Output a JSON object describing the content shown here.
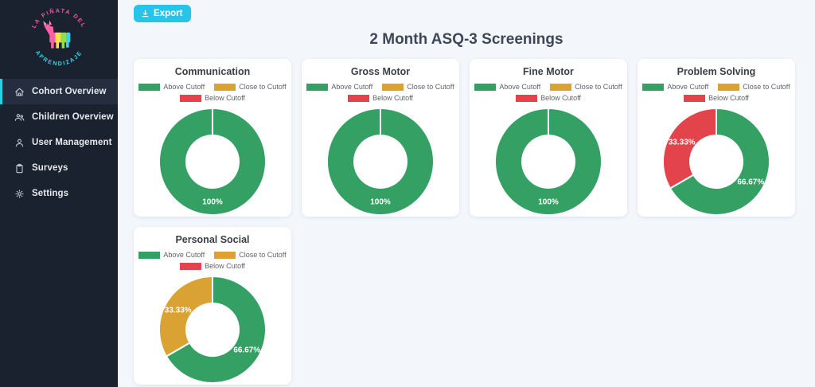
{
  "sidebar": {
    "logo": {
      "top_text": "LA PIÑATA DEL",
      "bottom_text": "APRENDIZAJE"
    },
    "items": [
      {
        "label": "Cohort Overview",
        "icon": "home",
        "active": true
      },
      {
        "label": "Children Overview",
        "icon": "people",
        "active": false
      },
      {
        "label": "User Management",
        "icon": "user",
        "active": false
      },
      {
        "label": "Surveys",
        "icon": "clipboard",
        "active": false
      },
      {
        "label": "Settings",
        "icon": "gear",
        "active": false
      }
    ]
  },
  "toolbar": {
    "export_label": "Export"
  },
  "page_title": "2 Month ASQ-3 Screenings",
  "chart_meta": {
    "categories": [
      "Above Cutoff",
      "Close to Cutoff",
      "Below Cutoff"
    ],
    "colors": [
      "#35a064",
      "#d9a233",
      "#e3434a"
    ],
    "legend_position": "top",
    "accent_color": "#27c4ea"
  },
  "chart_data": [
    {
      "type": "doughnut",
      "title": "Communication",
      "categories": [
        "Above Cutoff",
        "Close to Cutoff",
        "Below Cutoff"
      ],
      "values": [
        100,
        0,
        0
      ],
      "slice_labels": [
        "100%",
        "",
        ""
      ]
    },
    {
      "type": "doughnut",
      "title": "Gross Motor",
      "categories": [
        "Above Cutoff",
        "Close to Cutoff",
        "Below Cutoff"
      ],
      "values": [
        100,
        0,
        0
      ],
      "slice_labels": [
        "100%",
        "",
        ""
      ]
    },
    {
      "type": "doughnut",
      "title": "Fine Motor",
      "categories": [
        "Above Cutoff",
        "Close to Cutoff",
        "Below Cutoff"
      ],
      "values": [
        100,
        0,
        0
      ],
      "slice_labels": [
        "100%",
        "",
        ""
      ]
    },
    {
      "type": "doughnut",
      "title": "Problem Solving",
      "categories": [
        "Above Cutoff",
        "Close to Cutoff",
        "Below Cutoff"
      ],
      "values": [
        66.67,
        0,
        33.33
      ],
      "slice_labels": [
        "66.67%",
        "",
        "33.33%"
      ]
    },
    {
      "type": "doughnut",
      "title": "Personal Social",
      "categories": [
        "Above Cutoff",
        "Close to Cutoff",
        "Below Cutoff"
      ],
      "values": [
        66.67,
        33.33,
        0
      ],
      "slice_labels": [
        "66.67%",
        "33.33%",
        ""
      ]
    }
  ]
}
